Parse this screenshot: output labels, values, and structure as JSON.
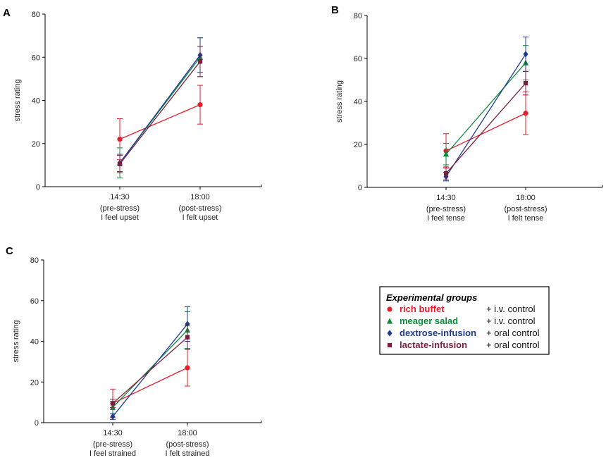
{
  "groups": [
    {
      "name": "rich buffet",
      "control": "+ i.v. control",
      "color": "#e41e2b",
      "marker": "circle"
    },
    {
      "name": "meager salad",
      "control": "+ i.v. control",
      "color": "#0f8a3c",
      "marker": "triangle"
    },
    {
      "name": "dextrose-infusion",
      "control": "+ oral control",
      "color": "#1f3a93",
      "marker": "diamond"
    },
    {
      "name": "lactate-infusion",
      "control": "+ oral control",
      "color": "#7a1f3d",
      "marker": "square"
    }
  ],
  "legend": {
    "title": "Experimental groups"
  },
  "chart_data": [
    {
      "panel": "A",
      "type": "line",
      "ylabel": "stress rating",
      "ylim": [
        0,
        80
      ],
      "yticks": [
        0,
        20,
        40,
        60,
        80
      ],
      "categories": [
        [
          "14:30",
          "(pre-stress)",
          "I feel upset"
        ],
        [
          "18:00",
          "(post-stress)",
          "I felt upset"
        ]
      ],
      "series": [
        {
          "name": "rich buffet",
          "values": [
            22,
            38
          ],
          "err": [
            9.5,
            9
          ]
        },
        {
          "name": "meager salad",
          "values": [
            11,
            60
          ],
          "err": [
            7,
            9
          ]
        },
        {
          "name": "dextrose-infusion",
          "values": [
            11,
            61
          ],
          "err": [
            4,
            8
          ]
        },
        {
          "name": "lactate-infusion",
          "values": [
            10.5,
            58
          ],
          "err": [
            4,
            7
          ]
        }
      ]
    },
    {
      "panel": "B",
      "type": "line",
      "ylabel": "stress rating",
      "ylim": [
        0,
        80
      ],
      "yticks": [
        0,
        20,
        40,
        60,
        80
      ],
      "categories": [
        [
          "14:30",
          "(pre-stress)",
          "I feel tense"
        ],
        [
          "18:00",
          "(post-stress)",
          "I felt tense"
        ]
      ],
      "series": [
        {
          "name": "rich buffet",
          "values": [
            17,
            34.5
          ],
          "err": [
            8,
            10
          ]
        },
        {
          "name": "meager salad",
          "values": [
            15.5,
            58
          ],
          "err": [
            5,
            8
          ]
        },
        {
          "name": "dextrose-infusion",
          "values": [
            5,
            62
          ],
          "err": [
            2,
            8
          ]
        },
        {
          "name": "lactate-infusion",
          "values": [
            6.5,
            48.5
          ],
          "err": [
            3,
            5.5
          ]
        }
      ]
    },
    {
      "panel": "C",
      "type": "line",
      "ylabel": "stress rating",
      "ylim": [
        0,
        80
      ],
      "yticks": [
        0,
        20,
        40,
        60,
        80
      ],
      "categories": [
        [
          "14:30",
          "(pre-stress)",
          "I feel strained"
        ],
        [
          "18:00",
          "(post-stress)",
          "I felt strained"
        ]
      ],
      "series": [
        {
          "name": "rich buffet",
          "values": [
            9.5,
            27
          ],
          "err": [
            7,
            9
          ]
        },
        {
          "name": "meager salad",
          "values": [
            7.5,
            45.5
          ],
          "err": [
            3,
            9
          ]
        },
        {
          "name": "dextrose-infusion",
          "values": [
            3,
            48.5
          ],
          "err": [
            1.5,
            8.5
          ]
        },
        {
          "name": "lactate-infusion",
          "values": [
            9.5,
            42
          ],
          "err": [
            2,
            6
          ]
        }
      ]
    }
  ]
}
